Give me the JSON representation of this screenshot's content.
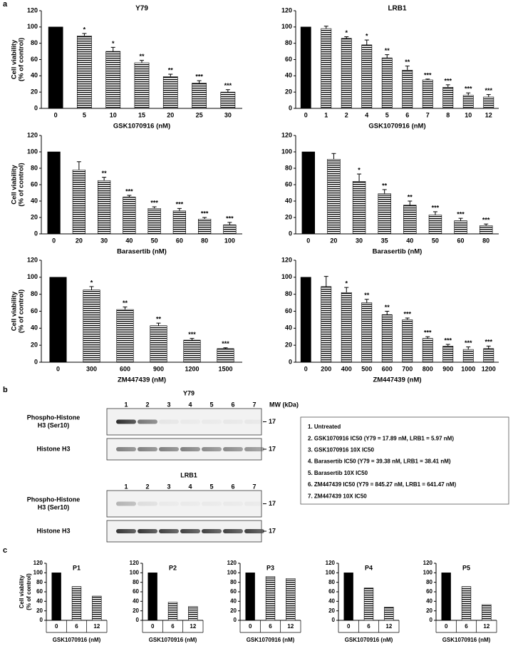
{
  "panel_labels": [
    "a",
    "b",
    "c"
  ],
  "chart_data": [
    {
      "type": "bar",
      "title": "Y79",
      "ylabel": [
        "Cell viability",
        "(% of control)"
      ],
      "xlabel": "GSK1070916 (nM)",
      "color": "#000000",
      "ylim": [
        0,
        120
      ],
      "yticks": [
        0,
        20,
        40,
        60,
        80,
        100,
        120
      ],
      "categories": [
        "0",
        "5",
        "10",
        "15",
        "20",
        "25",
        "30"
      ],
      "fills": [
        "solid",
        "stripes",
        "stripes",
        "stripes",
        "stripes",
        "stripes",
        "stripes"
      ],
      "values": [
        100,
        89,
        70,
        56,
        39,
        31,
        20
      ],
      "errors": [
        null,
        3,
        5,
        3,
        3,
        3,
        3
      ],
      "annotations": [
        null,
        "*",
        "*",
        "**",
        "**",
        "***",
        "***"
      ]
    },
    {
      "type": "bar",
      "title": "LRB1",
      "xlabel": "GSK1070916 (nM)",
      "color": "#000000",
      "ylim": [
        0,
        120
      ],
      "yticks": [
        0,
        20,
        40,
        60,
        80,
        100,
        120
      ],
      "categories": [
        "0",
        "1",
        "2",
        "4",
        "5",
        "6",
        "7",
        "8",
        "10",
        "12"
      ],
      "fills": [
        "solid",
        "stripes",
        "stripes",
        "stripes",
        "stripes",
        "stripes",
        "stripes",
        "stripes",
        "stripes",
        "stripes"
      ],
      "values": [
        100,
        98,
        86,
        78,
        62,
        47,
        35,
        26,
        16,
        14
      ],
      "errors": [
        null,
        3,
        2,
        6,
        4,
        5,
        1,
        3,
        3,
        3
      ],
      "annotations": [
        null,
        null,
        "*",
        "*",
        "**",
        "**",
        "***",
        "***",
        "***",
        "***"
      ]
    },
    {
      "type": "bar",
      "ylabel": [
        "Cell viability",
        "(% of control)"
      ],
      "xlabel": "Barasertib (nM)",
      "color": "#000000",
      "ylim": [
        0,
        120
      ],
      "yticks": [
        0,
        20,
        40,
        60,
        80,
        100,
        120
      ],
      "categories": [
        "0",
        "20",
        "30",
        "40",
        "50",
        "60",
        "80",
        "100"
      ],
      "fills": [
        "solid",
        "stripes",
        "stripes",
        "stripes",
        "stripes",
        "stripes",
        "stripes",
        "stripes"
      ],
      "values": [
        100,
        78,
        65,
        45,
        31,
        28,
        18,
        11
      ],
      "errors": [
        null,
        10,
        4,
        2,
        2,
        3,
        2,
        3
      ],
      "annotations": [
        null,
        null,
        "**",
        "***",
        "***",
        "***",
        "***",
        "***"
      ]
    },
    {
      "type": "bar",
      "xlabel": "Barasertib (nM)",
      "color": "#000000",
      "ylim": [
        0,
        120
      ],
      "yticks": [
        0,
        20,
        40,
        60,
        80,
        100,
        120
      ],
      "categories": [
        "0",
        "20",
        "30",
        "35",
        "40",
        "50",
        "60",
        "80"
      ],
      "fills": [
        "solid",
        "stripes",
        "stripes",
        "stripes",
        "stripes",
        "stripes",
        "stripes",
        "stripes"
      ],
      "values": [
        100,
        91,
        64,
        49,
        35,
        23,
        16,
        10
      ],
      "errors": [
        null,
        7,
        9,
        5,
        5,
        4,
        3,
        2
      ],
      "annotations": [
        null,
        null,
        "*",
        "**",
        "**",
        "***",
        "***",
        "***"
      ]
    },
    {
      "type": "bar",
      "ylabel": [
        "Cell viability",
        "(% of control)"
      ],
      "xlabel": "ZM447439 (nM)",
      "color": "#000000",
      "ylim": [
        0,
        120
      ],
      "yticks": [
        0,
        20,
        40,
        60,
        80,
        100,
        120
      ],
      "categories": [
        "0",
        "300",
        "600",
        "900",
        "1200",
        "1500"
      ],
      "fills": [
        "solid",
        "stripes",
        "stripes",
        "stripes",
        "stripes",
        "stripes"
      ],
      "values": [
        100,
        85,
        62,
        43,
        26,
        16
      ],
      "errors": [
        null,
        4,
        3,
        3,
        2,
        1
      ],
      "annotations": [
        null,
        "*",
        "**",
        "**",
        "***",
        "***"
      ]
    },
    {
      "type": "bar",
      "xlabel": "ZM447439 (nM)",
      "color": "#000000",
      "ylim": [
        0,
        120
      ],
      "yticks": [
        0,
        20,
        40,
        60,
        80,
        100,
        120
      ],
      "categories": [
        "0",
        "200",
        "400",
        "500",
        "600",
        "700",
        "800",
        "900",
        "1000",
        "1200"
      ],
      "fills": [
        "solid",
        "stripes",
        "stripes",
        "stripes",
        "stripes",
        "stripes",
        "stripes",
        "stripes",
        "stripes",
        "stripes"
      ],
      "values": [
        100,
        89,
        82,
        70,
        56,
        50,
        28,
        19,
        15,
        16
      ],
      "errors": [
        null,
        12,
        6,
        4,
        4,
        2,
        2,
        2,
        3,
        3
      ],
      "annotations": [
        null,
        null,
        "*",
        "**",
        "**",
        "***",
        "***",
        "***",
        "***",
        "***"
      ]
    },
    {
      "type": "bar",
      "title": "P1",
      "ylabel": [
        "Cell viability",
        "(% of control)"
      ],
      "xlabel": "GSK1070916 (nM)",
      "color": "#000000",
      "ylim": [
        0,
        120
      ],
      "yticks": [
        0,
        20,
        40,
        60,
        80,
        100,
        120
      ],
      "categories": [
        "0",
        "6",
        "12"
      ],
      "fills": [
        "solid",
        "stripes",
        "stripes"
      ],
      "values": [
        100,
        71,
        51
      ]
    },
    {
      "type": "bar",
      "title": "P2",
      "xlabel": "GSK1070916 (nM)",
      "color": "#000000",
      "ylim": [
        0,
        120
      ],
      "yticks": [
        0,
        20,
        40,
        60,
        80,
        100,
        120
      ],
      "categories": [
        "0",
        "6",
        "12"
      ],
      "fills": [
        "solid",
        "stripes",
        "stripes"
      ],
      "values": [
        100,
        38,
        29
      ]
    },
    {
      "type": "bar",
      "title": "P3",
      "xlabel": "GSK1070916 (nM)",
      "color": "#000000",
      "ylim": [
        0,
        120
      ],
      "yticks": [
        0,
        20,
        40,
        60,
        80,
        100,
        120
      ],
      "categories": [
        "0",
        "6",
        "12"
      ],
      "fills": [
        "solid",
        "stripes",
        "stripes"
      ],
      "values": [
        100,
        92,
        88
      ]
    },
    {
      "type": "bar",
      "title": "P4",
      "xlabel": "GSK1070916 (nM)",
      "color": "#000000",
      "ylim": [
        0,
        120
      ],
      "yticks": [
        0,
        20,
        40,
        60,
        80,
        100,
        120
      ],
      "categories": [
        "0",
        "6",
        "12"
      ],
      "fills": [
        "solid",
        "stripes",
        "stripes"
      ],
      "values": [
        100,
        68,
        28
      ]
    },
    {
      "type": "bar",
      "title": "P5",
      "xlabel": "GSK1070916 (nM)",
      "color": "#000000",
      "ylim": [
        0,
        120
      ],
      "yticks": [
        0,
        20,
        40,
        60,
        80,
        100,
        120
      ],
      "categories": [
        "0",
        "6",
        "12"
      ],
      "fills": [
        "solid",
        "stripes",
        "stripes"
      ],
      "values": [
        100,
        71,
        33
      ]
    }
  ],
  "blots": {
    "mw_label": "MW (kDa)",
    "groups": [
      {
        "title": "Y79",
        "lanes": [
          "1",
          "2",
          "3",
          "4",
          "5",
          "6",
          "7"
        ],
        "rows": [
          {
            "label": [
              "Phospho-Histone",
              "H3 (Ser10)"
            ],
            "marker": "17"
          },
          {
            "label": [
              "Histone H3"
            ],
            "marker": "17"
          }
        ]
      },
      {
        "title": "LRB1",
        "lanes": [
          "1",
          "2",
          "3",
          "4",
          "5",
          "6",
          "7"
        ],
        "rows": [
          {
            "label": [
              "Phospho-Histone",
              "H3 (Ser10)"
            ],
            "marker": "17"
          },
          {
            "label": [
              "Histone H3"
            ],
            "marker": "17"
          }
        ]
      }
    ]
  },
  "legend": [
    "1. Untreated",
    "2. GSK1070916 IC50 (Y79 = 17.89 nM, LRB1 = 5.97 nM)",
    "3. GSK1070916 10X IC50",
    "4. Barasertib IC50 (Y79 = 39.38 nM, LRB1 = 38.41 nM)",
    "5. Barasertib 10X IC50",
    "6. ZM447439 IC50 (Y79 = 845.27 nM, LRB1 = 641.47 nM)",
    "7. ZM447439 10X IC50"
  ]
}
